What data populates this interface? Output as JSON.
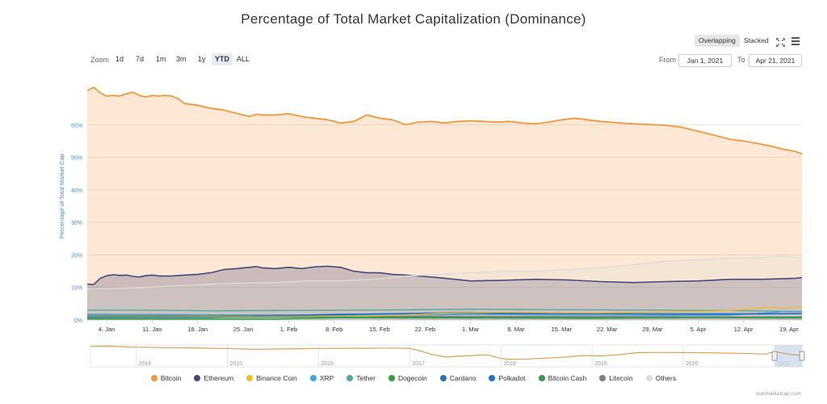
{
  "title": "Percentage of Total Market Capitalization (Dominance)",
  "view_modes": [
    "Overlapping",
    "Stacked"
  ],
  "active_view": "Overlapping",
  "zoom": {
    "label": "Zoom",
    "options": [
      "1d",
      "7d",
      "1m",
      "3m",
      "1y",
      "YTD",
      "ALL"
    ],
    "active": "YTD"
  },
  "range": {
    "from_label": "From",
    "from": "Jan 1, 2021",
    "to_label": "To",
    "to": "Apr 21, 2021"
  },
  "credit": "coinmarketcap.com",
  "colors": {
    "Bitcoin": "#f0983c",
    "Ethereum": "#4a4a7a",
    "Binance Coin": "#f3ba2f",
    "XRP": "#3ea6d9",
    "Tether": "#4daa98",
    "Dogecoin": "#2f9e44",
    "Cardano": "#2b72c0",
    "Polkadot": "#1e73d6",
    "Bitcoin Cash": "#3c9a4a",
    "Litecoin": "#808080",
    "Others": "#dcdcdc"
  },
  "chart_data": {
    "type": "area",
    "title": "Percentage of Total Market Capitalization (Dominance)",
    "ylabel": "Percentage of Total Market Cap",
    "ylim": [
      0,
      72
    ],
    "yticks": [
      0,
      10,
      20,
      30,
      40,
      50,
      60
    ],
    "ytick_labels": [
      "0%",
      "10%",
      "20%",
      "30%",
      "40%",
      "50%",
      "60%"
    ],
    "xlim": [
      1,
      111
    ],
    "xticks": [
      4,
      11,
      18,
      25,
      32,
      39,
      46,
      53,
      60,
      67,
      74,
      81,
      88,
      95,
      102,
      109
    ],
    "xtick_labels": [
      "4. Jan",
      "11. Jan",
      "18. Jan",
      "25. Jan",
      "1. Feb",
      "8. Feb",
      "15. Feb",
      "22. Feb",
      "1. Mar",
      "8. Mar",
      "15. Mar",
      "22. Mar",
      "29. Mar",
      "5. Apr",
      "12. Apr",
      "19. Apr"
    ],
    "grid": true,
    "legend": "bottom",
    "series": [
      {
        "name": "Bitcoin",
        "x": [
          1,
          2,
          3,
          4,
          5,
          6,
          7,
          8,
          9,
          10,
          11,
          12,
          13,
          14,
          15,
          16,
          18,
          20,
          22,
          24,
          26,
          27,
          28,
          30,
          32,
          34,
          36,
          38,
          39,
          40,
          42,
          44,
          46,
          48,
          50,
          52,
          54,
          56,
          58,
          60,
          62,
          64,
          66,
          68,
          70,
          72,
          74,
          76,
          78,
          80,
          82,
          84,
          86,
          88,
          90,
          92,
          94,
          96,
          98,
          100,
          102,
          104,
          106,
          108,
          110,
          111
        ],
        "values": [
          70.5,
          71.5,
          69.8,
          68.8,
          69.0,
          68.8,
          69.5,
          70.0,
          69.0,
          68.5,
          69.0,
          68.8,
          69.0,
          68.8,
          68.0,
          66.5,
          66.0,
          65.0,
          64.5,
          63.5,
          62.5,
          63.2,
          63.0,
          63.0,
          63.4,
          62.5,
          62.0,
          61.5,
          61.0,
          60.5,
          61.0,
          63.0,
          62.0,
          61.5,
          60.0,
          60.8,
          61.0,
          60.5,
          61.0,
          61.2,
          61.0,
          60.8,
          61.0,
          60.5,
          60.3,
          60.8,
          61.5,
          62.0,
          61.5,
          61.0,
          60.7,
          60.4,
          60.2,
          60.0,
          59.8,
          59.4,
          58.5,
          57.5,
          56.5,
          55.5,
          55.0,
          54.3,
          53.5,
          52.5,
          51.8,
          51.0
        ]
      },
      {
        "name": "Ethereum",
        "x": [
          1,
          2,
          3,
          4,
          5,
          6,
          7,
          8,
          9,
          10,
          11,
          12,
          14,
          16,
          18,
          20,
          22,
          24,
          25,
          26,
          27,
          28,
          30,
          32,
          34,
          36,
          38,
          40,
          42,
          44,
          46,
          48,
          50,
          55,
          60,
          65,
          70,
          75,
          80,
          85,
          90,
          95,
          100,
          105,
          110,
          111
        ],
        "values": [
          11.0,
          10.9,
          12.8,
          13.6,
          13.9,
          13.7,
          13.8,
          13.4,
          13.2,
          13.6,
          13.8,
          13.5,
          13.5,
          13.8,
          14.0,
          14.5,
          15.5,
          15.8,
          16.0,
          16.2,
          16.4,
          16.0,
          15.8,
          16.2,
          15.8,
          16.3,
          16.5,
          16.2,
          15.0,
          14.5,
          14.5,
          14.0,
          13.8,
          13.0,
          12.0,
          12.2,
          12.5,
          12.3,
          11.8,
          11.5,
          11.8,
          12.0,
          12.5,
          12.5,
          12.8,
          13.0
        ]
      },
      {
        "name": "Binance Coin",
        "x": [
          1,
          10,
          20,
          30,
          40,
          50,
          55,
          60,
          65,
          70,
          75,
          80,
          85,
          90,
          95,
          100,
          103,
          106,
          108,
          110,
          111
        ],
        "values": [
          1.0,
          1.0,
          1.1,
          1.1,
          1.1,
          1.5,
          2.0,
          2.2,
          2.4,
          2.3,
          2.2,
          2.2,
          2.3,
          2.5,
          2.6,
          2.9,
          3.4,
          4.0,
          3.6,
          3.8,
          4.2
        ]
      },
      {
        "name": "XRP",
        "x": [
          1,
          20,
          40,
          55,
          60,
          65,
          70,
          80,
          90,
          100,
          105,
          108,
          111
        ],
        "values": [
          1.8,
          1.6,
          1.5,
          1.6,
          1.8,
          1.7,
          1.6,
          1.5,
          1.4,
          1.5,
          2.1,
          2.6,
          2.5
        ]
      },
      {
        "name": "Tether",
        "x": [
          1,
          10,
          20,
          30,
          40,
          50,
          60,
          70,
          80,
          90,
          100,
          111
        ],
        "values": [
          3.0,
          3.0,
          2.8,
          2.9,
          3.0,
          3.1,
          3.3,
          3.2,
          3.1,
          3.0,
          2.9,
          2.6
        ]
      },
      {
        "name": "Dogecoin",
        "x": [
          1,
          30,
          40,
          60,
          80,
          100,
          111
        ],
        "values": [
          0.3,
          0.3,
          0.7,
          0.6,
          0.5,
          0.7,
          0.9
        ]
      },
      {
        "name": "Cardano",
        "x": [
          1,
          20,
          30,
          40,
          50,
          60,
          70,
          80,
          90,
          100,
          111
        ],
        "values": [
          0.7,
          0.8,
          1.3,
          1.7,
          2.0,
          2.3,
          2.1,
          2.0,
          1.9,
          1.9,
          2.0
        ]
      },
      {
        "name": "Polkadot",
        "x": [
          1,
          20,
          30,
          40,
          50,
          60,
          70,
          80,
          90,
          100,
          111
        ],
        "values": [
          0.8,
          1.1,
          1.4,
          1.8,
          1.9,
          2.0,
          1.9,
          1.9,
          1.8,
          1.8,
          1.9
        ]
      },
      {
        "name": "Bitcoin Cash",
        "x": [
          1,
          30,
          60,
          90,
          111
        ],
        "values": [
          1.0,
          0.9,
          0.8,
          0.7,
          0.6
        ]
      },
      {
        "name": "Litecoin",
        "x": [
          1,
          30,
          60,
          90,
          111
        ],
        "values": [
          1.4,
          1.3,
          1.1,
          1.0,
          0.9
        ]
      },
      {
        "name": "Others",
        "x": [
          1,
          5,
          10,
          15,
          20,
          25,
          30,
          35,
          40,
          45,
          50,
          55,
          60,
          65,
          70,
          75,
          80,
          85,
          90,
          95,
          100,
          105,
          108,
          111
        ],
        "values": [
          9.5,
          9.7,
          10.0,
          10.5,
          11.0,
          11.3,
          11.5,
          12.0,
          12.0,
          12.5,
          13.5,
          14.0,
          14.5,
          15.0,
          15.0,
          15.5,
          16.0,
          17.0,
          18.0,
          18.5,
          19.0,
          19.2,
          19.6,
          19.0
        ]
      }
    ]
  },
  "navigator": {
    "labels": [
      "2014",
      "2015",
      "2016",
      "2017",
      "2018",
      "2019",
      "2020",
      "2021"
    ],
    "x": [
      2013.5,
      2013.7,
      2014.0,
      2014.3,
      2014.6,
      2014.8,
      2015.0,
      2015.3,
      2015.6,
      2016.0,
      2016.4,
      2016.8,
      2017.0,
      2017.1,
      2017.25,
      2017.4,
      2017.5,
      2017.7,
      2017.85,
      2018.0,
      2018.1,
      2018.3,
      2018.5,
      2018.7,
      2018.9,
      2019.1,
      2019.3,
      2019.5,
      2019.8,
      2020.0,
      2020.3,
      2020.6,
      2020.9,
      2021.0,
      2021.15,
      2021.3
    ],
    "values": [
      94,
      95,
      90,
      88,
      87,
      85,
      84,
      80,
      82,
      84,
      85,
      86,
      85,
      75,
      56,
      45,
      48,
      52,
      55,
      38,
      35,
      36,
      40,
      45,
      52,
      50,
      56,
      65,
      66,
      65,
      64,
      62,
      58,
      70,
      58,
      52
    ]
  },
  "legend": [
    "Bitcoin",
    "Ethereum",
    "Binance Coin",
    "XRP",
    "Tether",
    "Dogecoin",
    "Cardano",
    "Polkadot",
    "Bitcoin Cash",
    "Litecoin",
    "Others"
  ]
}
